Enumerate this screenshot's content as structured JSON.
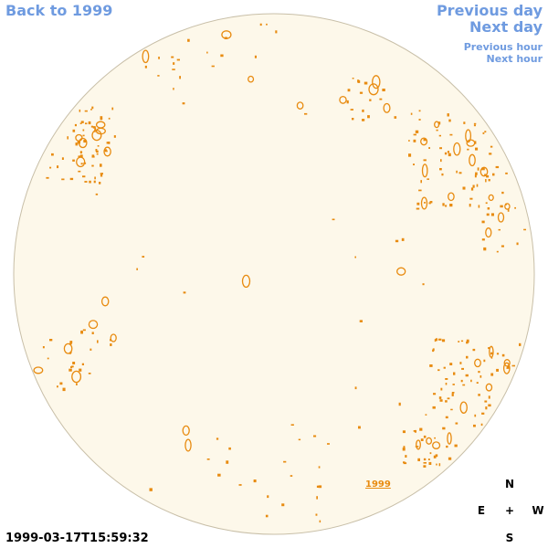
{
  "nav": {
    "back_label": "Back to 1999",
    "previous_day_label": "Previous day",
    "next_day_label": "Next day",
    "previous_hour_label": "Previous hour",
    "next_hour_label": "Next hour"
  },
  "timestamp": "1999-03-17T15:59:32",
  "year_link": "1999",
  "compass": {
    "north": "N",
    "south": "S",
    "east": "E",
    "west": "W",
    "center": "+"
  },
  "colors": {
    "disk_fill": "#fdf8ea",
    "disk_stroke": "#c8bfa8",
    "feature": "#e88b10",
    "link": "#6f9be0"
  }
}
